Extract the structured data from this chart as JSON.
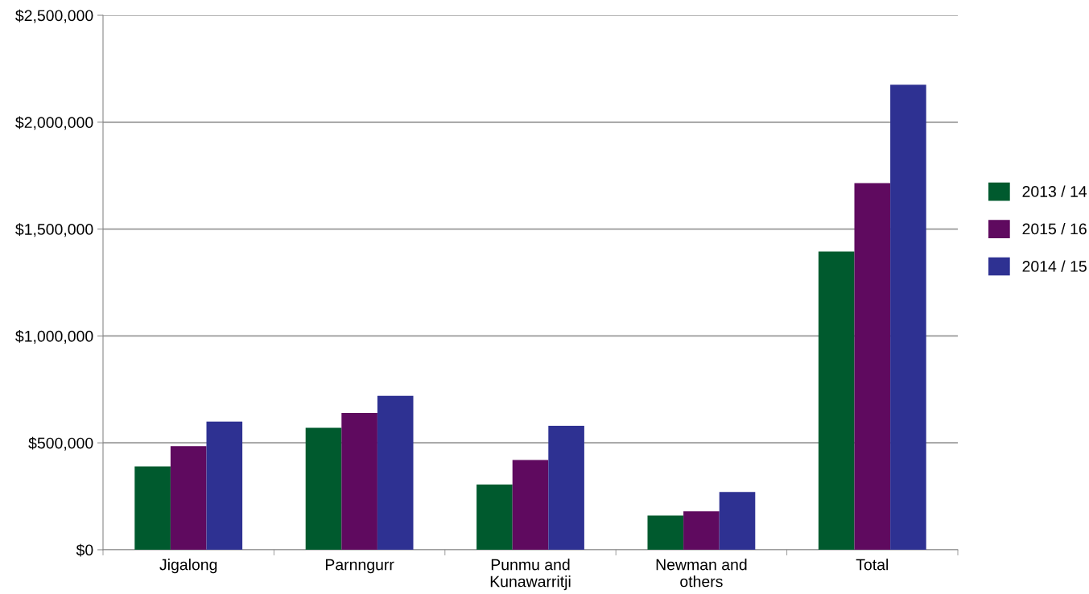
{
  "chart_data": {
    "type": "bar",
    "categories": [
      "Jigalong",
      "Parnngurr",
      "Punmu and\nKunawarritji",
      "Newman and\nothers",
      "Total"
    ],
    "series": [
      {
        "name": "2013 / 14",
        "color": "#005a2e",
        "values": [
          390000,
          570000,
          305000,
          160000,
          1395000
        ]
      },
      {
        "name": "2015 / 16",
        "color": "#5f0a5f",
        "values": [
          485000,
          640000,
          420000,
          180000,
          1715000
        ]
      },
      {
        "name": "2014 / 15",
        "color": "#2e3192",
        "values": [
          600000,
          720000,
          580000,
          270000,
          2175000
        ]
      }
    ],
    "ylim": [
      0,
      2500000
    ],
    "yticks": [
      {
        "value": 0,
        "label": "$0"
      },
      {
        "value": 500000,
        "label": "$500,000"
      },
      {
        "value": 1000000,
        "label": "$1,000,000"
      },
      {
        "value": 1500000,
        "label": "$1,500,000"
      },
      {
        "value": 2000000,
        "label": "$2,000,000"
      },
      {
        "value": 2500000,
        "label": "$2,500,000"
      }
    ],
    "grid": "y",
    "legend": "right"
  }
}
